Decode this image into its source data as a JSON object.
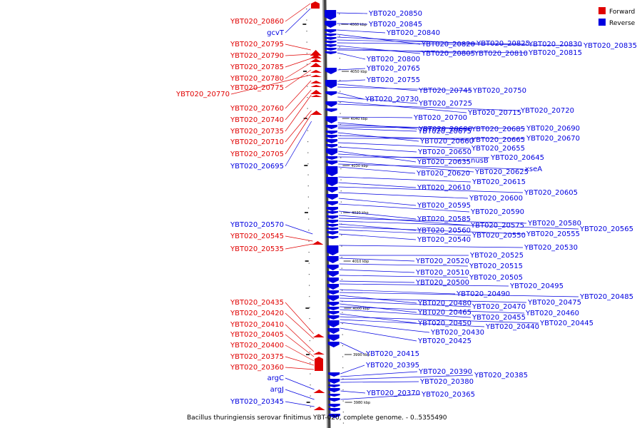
{
  "colors": {
    "forward": "#e00000",
    "reverse": "#0000e0",
    "axis": "#888888",
    "axis_shadow": "#444444",
    "text": "#000000"
  },
  "legend": {
    "forward": "Forward",
    "reverse": "Reverse"
  },
  "caption": "Bacillus thuringiensis serovar finitimus YBT-020, complete genome. - 0..5355490",
  "ticks": [
    "4060 kbp",
    "4050 kbp",
    "4040 kbp",
    "4030 kbp",
    "4020 kbp",
    "4010 kbp",
    "4000 kbp",
    "3990 kbp",
    "3980 kbp"
  ],
  "forward_labels": [
    "YBT020_20860",
    "gcvT",
    "YBT020_20795",
    "YBT020_20790",
    "YBT020_20785",
    "YBT020_20780",
    "YBT020_20775",
    "YBT020_20770",
    "YBT020_20760",
    "YBT020_20740",
    "YBT020_20735",
    "YBT020_20710",
    "YBT020_20705",
    "YBT020_20695",
    "YBT020_20570",
    "YBT020_20545",
    "YBT020_20535",
    "YBT020_20435",
    "YBT020_20420",
    "YBT020_20410",
    "YBT020_20405",
    "YBT020_20400",
    "YBT020_20375",
    "YBT020_20360",
    "argC",
    "argJ",
    "YBT020_20345"
  ],
  "reverse_labels": [
    "YBT020_20850",
    "YBT020_20845",
    "YBT020_20840",
    "YBT020_20820",
    "YBT020_20825",
    "YBT020_20830",
    "YBT020_20835",
    "YBT020_20805",
    "YBT020_20810",
    "YBT020_20815",
    "YBT020_20800",
    "YBT020_20765",
    "YBT020_20755",
    "YBT020_20745",
    "YBT020_20750",
    "YBT020_20730",
    "YBT020_20725",
    "YBT020_20715",
    "YBT020_20720",
    "YBT020_20700",
    "YBT020_20680",
    "YBT020_20685",
    "YBT020_20690",
    "YBT020_20675",
    "YBT020_20660",
    "YBT020_20665",
    "YBT020_20670",
    "YBT020_20655",
    "YBT020_20650",
    "YBT020_20635",
    "nusB",
    "YBT020_20645",
    "YBT020_20625",
    "xseA",
    "YBT020_20620",
    "YBT020_20615",
    "YBT020_20610",
    "YBT020_20605",
    "YBT020_20600",
    "YBT020_20595",
    "YBT020_20590",
    "YBT020_20585",
    "YBT020_20575",
    "YBT020_20580",
    "YBT020_20565",
    "YBT020_20560",
    "YBT020_20555",
    "YBT020_20550",
    "YBT020_20540",
    "YBT020_20530",
    "YBT020_20525",
    "YBT020_20520",
    "YBT020_20515",
    "YBT020_20510",
    "YBT020_20505",
    "YBT020_20500",
    "YBT020_20495",
    "YBT020_20490",
    "YBT020_20485",
    "YBT020_20480",
    "YBT020_20475",
    "YBT020_20470",
    "YBT020_20465",
    "YBT020_20460",
    "YBT020_20455",
    "YBT020_20450",
    "YBT020_20445",
    "YBT020_20440",
    "YBT020_20430",
    "YBT020_20425",
    "YBT020_20415",
    "YBT020_20395",
    "YBT020_20390",
    "YBT020_20385",
    "YBT020_20380",
    "YBT020_20370",
    "YBT020_20365"
  ]
}
